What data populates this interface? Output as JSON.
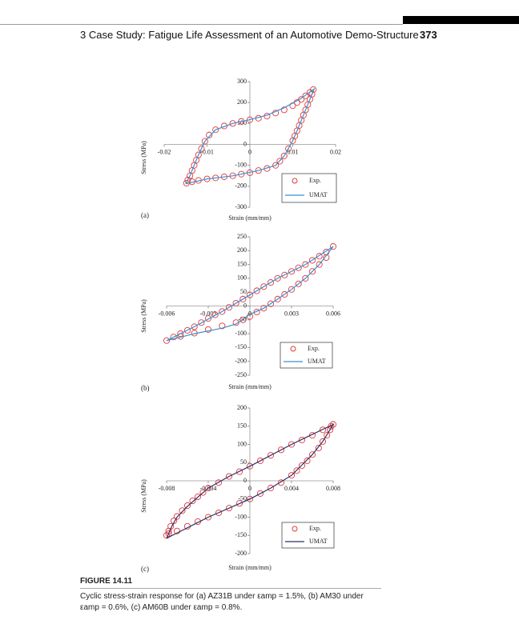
{
  "header": {
    "chapter": "3 Case Study: Fatigue Life Assessment of an Automotive Demo-Structure",
    "page": "373"
  },
  "figure": {
    "label": "FIGURE 14.11",
    "caption": [
      "Cyclic stress-strain response for (a) AZ31B under εamp = 1.5%, (b) AM30 under",
      "εamp = 0.6%, (c) AM60B under εamp = 0.8%."
    ]
  },
  "chart_data": [
    {
      "type": "scatter",
      "panel": "(a)",
      "x_label": "Strain (mm/mm)",
      "y_label": "Stress (MPa)",
      "xlim": [
        -0.02,
        0.02
      ],
      "ylim": [
        -300,
        300
      ],
      "xticks": [
        -0.02,
        -0.01,
        0,
        0.01,
        0.02
      ],
      "yticks": [
        -300,
        -200,
        -100,
        0,
        100,
        200,
        300
      ],
      "legend": "lower right",
      "series": [
        {
          "name": "Exp.",
          "color": "#e03a3a",
          "marker": "circle",
          "x": [
            -0.0148,
            -0.0145,
            -0.014,
            -0.0135,
            -0.013,
            -0.0125,
            -0.012,
            -0.0113,
            -0.0105,
            -0.0095,
            -0.008,
            -0.006,
            -0.004,
            -0.002,
            0,
            0.002,
            0.004,
            0.006,
            0.008,
            0.01,
            0.011,
            0.012,
            0.013,
            0.014,
            0.0148,
            0.0145,
            0.014,
            0.0135,
            0.013,
            0.0125,
            0.012,
            0.0115,
            0.011,
            0.0105,
            0.01,
            0.009,
            0.008,
            0.007,
            0.006,
            0.004,
            0.002,
            0,
            -0.002,
            -0.004,
            -0.006,
            -0.008,
            -0.01,
            -0.012,
            -0.0135
          ],
          "values": [
            -185,
            -170,
            -150,
            -125,
            -100,
            -75,
            -50,
            -20,
            15,
            45,
            70,
            88,
            100,
            110,
            118,
            125,
            135,
            150,
            165,
            185,
            200,
            215,
            232,
            248,
            262,
            240,
            215,
            190,
            165,
            140,
            115,
            90,
            65,
            40,
            18,
            -20,
            -55,
            -80,
            -100,
            -115,
            -125,
            -135,
            -142,
            -150,
            -155,
            -160,
            -165,
            -172,
            -178
          ]
        },
        {
          "name": "UMAT",
          "color": "#3a8fd0",
          "marker": "line",
          "x": [
            -0.015,
            -0.014,
            -0.013,
            -0.012,
            -0.0105,
            -0.008,
            -0.004,
            0,
            0.004,
            0.008,
            0.012,
            0.015,
            0.014,
            0.013,
            0.012,
            0.011,
            0.01,
            0.008,
            0.006,
            0.002,
            -0.004,
            -0.01,
            -0.015
          ],
          "values": [
            -188,
            -150,
            -100,
            -50,
            15,
            70,
            100,
            118,
            140,
            175,
            220,
            265,
            215,
            165,
            115,
            65,
            18,
            -55,
            -100,
            -125,
            -150,
            -165,
            -188
          ]
        }
      ]
    },
    {
      "type": "scatter",
      "panel": "(b)",
      "x_label": "Strain (mm/mm)",
      "y_label": "Stress (MPa)",
      "xlim": [
        -0.006,
        0.006
      ],
      "ylim": [
        -250,
        250
      ],
      "xticks": [
        -0.006,
        -0.003,
        0,
        0.003,
        0.006
      ],
      "yticks": [
        -250,
        -200,
        -150,
        -100,
        -50,
        0,
        50,
        100,
        150,
        200,
        250
      ],
      "legend": "lower right",
      "series": [
        {
          "name": "Exp.",
          "color": "#e03a3a",
          "marker": "circle",
          "x": [
            -0.006,
            -0.0055,
            -0.005,
            -0.0045,
            -0.004,
            -0.0035,
            -0.003,
            -0.0025,
            -0.002,
            -0.0015,
            -0.001,
            -0.0005,
            0,
            0.0005,
            0.001,
            0.0015,
            0.002,
            0.0025,
            0.003,
            0.0035,
            0.004,
            0.0045,
            0.005,
            0.0055,
            0.006,
            0.0055,
            0.005,
            0.0045,
            0.004,
            0.0035,
            0.003,
            0.0025,
            0.002,
            0.0015,
            0.001,
            0.0005,
            0,
            -0.0005,
            -0.001,
            -0.002,
            -0.003,
            -0.004,
            -0.005
          ],
          "values": [
            -125,
            -112,
            -100,
            -88,
            -75,
            -60,
            -45,
            -32,
            -20,
            -5,
            10,
            25,
            40,
            55,
            70,
            85,
            100,
            112,
            125,
            138,
            150,
            165,
            180,
            195,
            215,
            175,
            150,
            125,
            100,
            80,
            60,
            42,
            25,
            8,
            -8,
            -22,
            -38,
            -50,
            -60,
            -72,
            -85,
            -98,
            -110
          ]
        },
        {
          "name": "UMAT",
          "color": "#3a8fd0",
          "marker": "line",
          "x": [
            -0.006,
            -0.004,
            -0.002,
            0,
            0.002,
            0.004,
            0.006,
            0.005,
            0.004,
            0.003,
            0.002,
            0.001,
            0,
            -0.001,
            -0.002,
            -0.004,
            -0.006
          ],
          "values": [
            -125,
            -75,
            -20,
            40,
            100,
            150,
            215,
            150,
            100,
            60,
            25,
            -8,
            -30,
            -65,
            -80,
            -100,
            -125
          ]
        }
      ]
    },
    {
      "type": "scatter",
      "panel": "(c)",
      "x_label": "Strain (mm/mm)",
      "y_label": "Stress (MPa)",
      "xlim": [
        -0.008,
        0.008
      ],
      "ylim": [
        -200,
        200
      ],
      "xticks": [
        -0.008,
        -0.004,
        0,
        0.004,
        0.008
      ],
      "yticks": [
        -200,
        -150,
        -100,
        -50,
        0,
        50,
        100,
        150,
        200
      ],
      "legend": "lower right",
      "series": [
        {
          "name": "Exp.",
          "color": "#e03a3a",
          "marker": "circle",
          "x": [
            -0.008,
            -0.0078,
            -0.0076,
            -0.0073,
            -0.007,
            -0.0065,
            -0.006,
            -0.0055,
            -0.005,
            -0.0045,
            -0.004,
            -0.003,
            -0.002,
            -0.001,
            0,
            0.001,
            0.002,
            0.003,
            0.004,
            0.005,
            0.006,
            0.007,
            0.0078,
            0.008,
            0.0077,
            0.0074,
            0.007,
            0.0066,
            0.006,
            0.0055,
            0.005,
            0.0045,
            0.004,
            0.003,
            0.002,
            0.001,
            0,
            -0.001,
            -0.002,
            -0.003,
            -0.004,
            -0.005,
            -0.006,
            -0.007,
            -0.0078
          ],
          "values": [
            -150,
            -138,
            -125,
            -110,
            -98,
            -82,
            -68,
            -55,
            -44,
            -32,
            -20,
            -5,
            12,
            25,
            40,
            55,
            70,
            85,
            100,
            112,
            125,
            140,
            150,
            155,
            140,
            125,
            108,
            90,
            72,
            55,
            42,
            28,
            15,
            -5,
            -20,
            -35,
            -50,
            -62,
            -75,
            -88,
            -100,
            -112,
            -125,
            -138,
            -145
          ]
        },
        {
          "name": "UMAT",
          "color": "#2b2f6b",
          "marker": "line",
          "x": [
            -0.008,
            -0.0075,
            -0.007,
            -0.006,
            -0.004,
            -0.002,
            0,
            0.004,
            0.008,
            0.007,
            0.006,
            0.004,
            0.002,
            0,
            -0.004,
            -0.008
          ],
          "values": [
            -158,
            -125,
            -100,
            -70,
            -20,
            12,
            40,
            100,
            155,
            108,
            72,
            15,
            -20,
            -50,
            -100,
            -158
          ]
        }
      ]
    }
  ]
}
